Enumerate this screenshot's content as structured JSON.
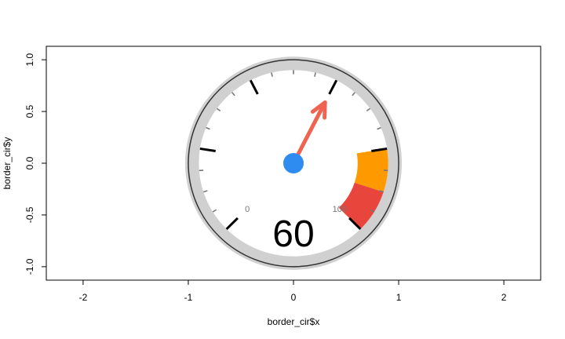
{
  "chart_data": {
    "type": "gauge",
    "xlabel": "border_cir$x",
    "ylabel": "border_cir$y",
    "xlim": [
      -2.35,
      2.35
    ],
    "ylim": [
      -1.13,
      1.13
    ],
    "x_ticks": [
      -2,
      -1,
      0,
      1,
      2
    ],
    "x_tick_labels": [
      "-2",
      "-1",
      "0",
      "1",
      "2"
    ],
    "y_ticks": [
      -1.0,
      -0.5,
      0.0,
      0.5,
      1.0
    ],
    "y_tick_labels": [
      "-1.0",
      "-0.5",
      "0.0",
      "0.5",
      "1.0"
    ],
    "gauge": {
      "value": 60,
      "value_label": "60",
      "min": 0,
      "max": 100,
      "min_label": "0",
      "max_label": "100",
      "start_angle_deg": 225,
      "end_angle_deg": -45,
      "major_ticks": [
        0,
        20,
        40,
        60,
        80,
        100
      ],
      "minor_ticks": [
        5,
        10,
        15,
        25,
        30,
        35,
        45,
        50,
        55,
        65,
        70,
        75,
        85,
        90,
        95
      ],
      "bands": [
        {
          "from": 80,
          "to": 90,
          "color": "#FF9900"
        },
        {
          "from": 90,
          "to": 100,
          "color": "#E8453C"
        }
      ],
      "needle_color": "#EF6351",
      "hub_color": "#2E8BF0",
      "rim_color": "#D0D0D0",
      "outline_color": "#333333"
    }
  }
}
